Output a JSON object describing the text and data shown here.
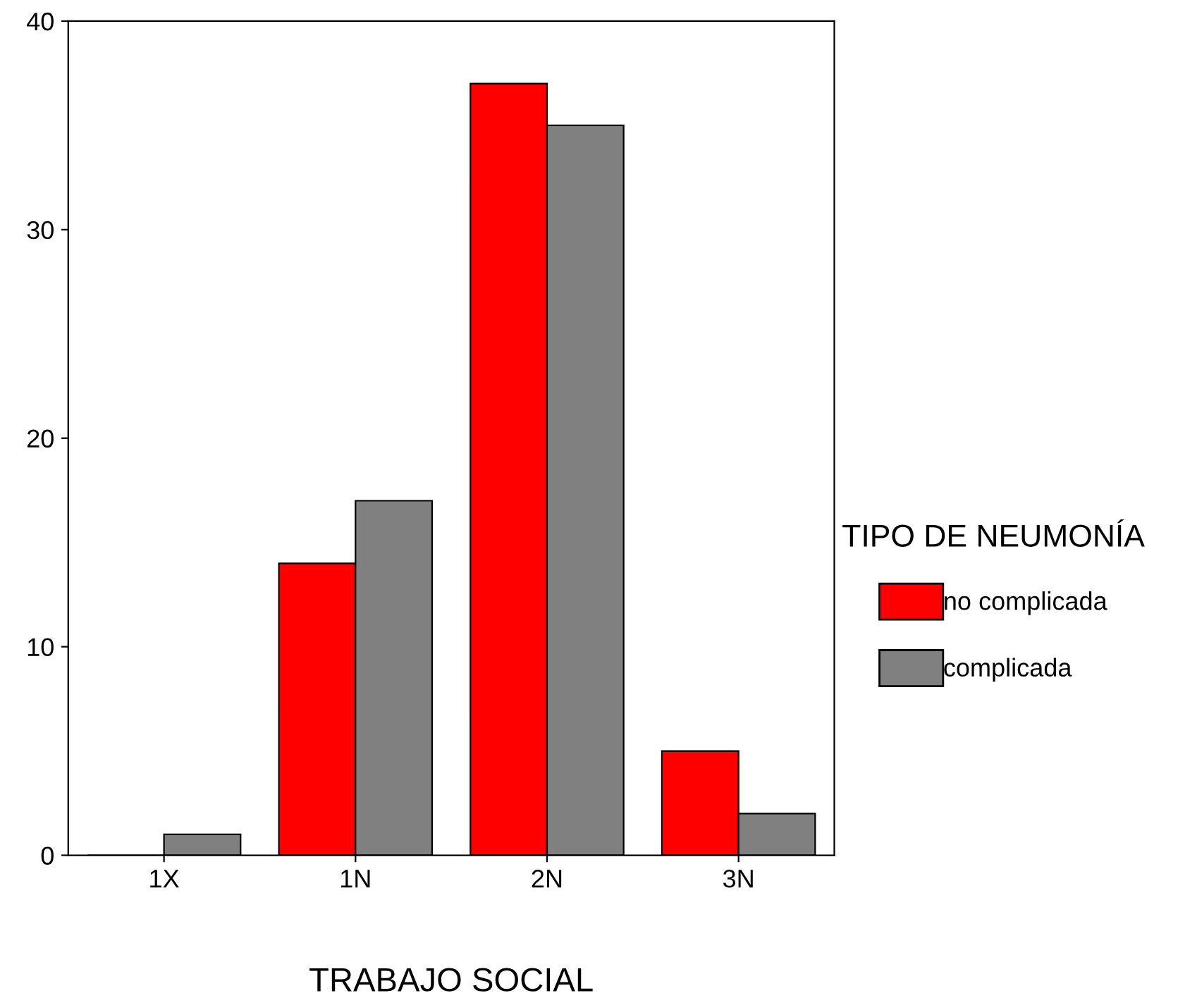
{
  "chart_data": {
    "type": "bar",
    "xlabel": "TRABAJO SOCIAL",
    "legend_title": "TIPO DE NEUMONÍA",
    "categories": [
      "1X",
      "1N",
      "2N",
      "3N"
    ],
    "series": [
      {
        "name": "no complicada",
        "color": "#ff0000",
        "values": [
          0,
          14,
          37,
          5
        ]
      },
      {
        "name": "complicada",
        "color": "#808080",
        "values": [
          1,
          17,
          35,
          2
        ]
      }
    ],
    "ylim": [
      0,
      40
    ],
    "yticks": [
      0,
      10,
      20,
      30,
      40
    ],
    "grid": false,
    "legend": "right"
  }
}
